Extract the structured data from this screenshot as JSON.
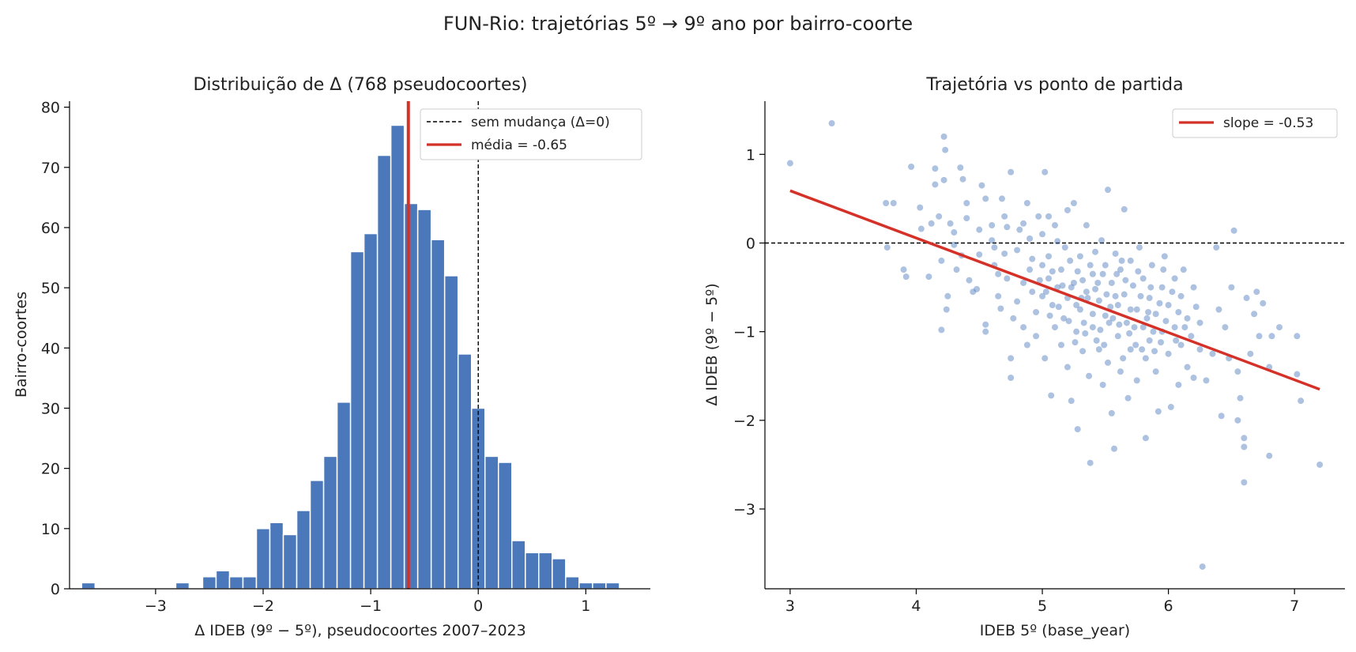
{
  "figure": {
    "title": "FUN-Rio: trajetórias 5º → 9º ano por bairro-coorte"
  },
  "chart_data": [
    {
      "type": "bar",
      "title": "Distribuição de Δ (768 pseudocoortes)",
      "xlabel": "Δ IDEB (9º − 5º), pseudocoortes 2007–2023",
      "ylabel": "Bairro-coortes",
      "xlim": [
        -3.8,
        1.6
      ],
      "ylim": [
        0,
        81
      ],
      "xticks": [
        -3,
        -2,
        -1,
        0,
        1
      ],
      "xtick_labels": [
        "−3",
        "−2",
        "−1",
        "0",
        "1"
      ],
      "yticks": [
        0,
        10,
        20,
        30,
        40,
        50,
        60,
        70,
        80
      ],
      "ytick_labels": [
        "0",
        "10",
        "20",
        "30",
        "40",
        "50",
        "60",
        "70",
        "80"
      ],
      "bin_width": 0.125,
      "bins": [
        {
          "x": -3.625,
          "count": 1
        },
        {
          "x": -2.75,
          "count": 1
        },
        {
          "x": -2.5,
          "count": 2
        },
        {
          "x": -2.375,
          "count": 3
        },
        {
          "x": -2.25,
          "count": 2
        },
        {
          "x": -2.125,
          "count": 2
        },
        {
          "x": -2.0,
          "count": 10
        },
        {
          "x": -1.875,
          "count": 11
        },
        {
          "x": -1.75,
          "count": 9
        },
        {
          "x": -1.625,
          "count": 13
        },
        {
          "x": -1.5,
          "count": 18
        },
        {
          "x": -1.375,
          "count": 22
        },
        {
          "x": -1.25,
          "count": 31
        },
        {
          "x": -1.125,
          "count": 56
        },
        {
          "x": -1.0,
          "count": 59
        },
        {
          "x": -0.875,
          "count": 72
        },
        {
          "x": -0.75,
          "count": 77
        },
        {
          "x": -0.625,
          "count": 64
        },
        {
          "x": -0.5,
          "count": 63
        },
        {
          "x": -0.375,
          "count": 58
        },
        {
          "x": -0.25,
          "count": 52
        },
        {
          "x": -0.125,
          "count": 39
        },
        {
          "x": 0.0,
          "count": 30
        },
        {
          "x": 0.125,
          "count": 22
        },
        {
          "x": 0.25,
          "count": 21
        },
        {
          "x": 0.375,
          "count": 8
        },
        {
          "x": 0.5,
          "count": 6
        },
        {
          "x": 0.625,
          "count": 6
        },
        {
          "x": 0.75,
          "count": 5
        },
        {
          "x": 0.875,
          "count": 2
        },
        {
          "x": 1.0,
          "count": 1
        },
        {
          "x": 1.125,
          "count": 1
        },
        {
          "x": 1.25,
          "count": 1
        }
      ],
      "bar_color": "#4a78bb",
      "reference_lines": [
        {
          "label": "sem mudança (Δ=0)",
          "x": 0,
          "style": "dashed",
          "color": "#000000"
        },
        {
          "label": "média = -0.65",
          "x": -0.65,
          "style": "solid",
          "color": "#d43228"
        }
      ],
      "legend_position": "top-right",
      "grid": false
    },
    {
      "type": "scatter",
      "title": "Trajetória vs ponto de partida",
      "xlabel": "IDEB 5º (base_year)",
      "ylabel": "Δ IDEB (9º − 5º)",
      "xlim": [
        2.8,
        7.4
      ],
      "ylim": [
        -3.9,
        1.6
      ],
      "xticks": [
        3,
        4,
        5,
        6,
        7
      ],
      "xtick_labels": [
        "3",
        "4",
        "5",
        "6",
        "7"
      ],
      "yticks": [
        -3,
        -2,
        -1,
        0,
        1
      ],
      "ytick_labels": [
        "−3",
        "−2",
        "−1",
        "0",
        "1"
      ],
      "point_color": "#4a78bb",
      "fit_line": {
        "label": "slope = -0.53",
        "x": [
          3.0,
          7.2
        ],
        "y": [
          0.59,
          -1.65
        ],
        "color": "#d43228"
      },
      "reference_lines": [
        {
          "y": 0,
          "style": "dashed",
          "color": "#000000"
        }
      ],
      "legend_position": "top-right",
      "grid": false,
      "points": [
        [
          3.0,
          0.9
        ],
        [
          3.33,
          1.35
        ],
        [
          3.76,
          0.45
        ],
        [
          3.82,
          0.45
        ],
        [
          3.77,
          -0.05
        ],
        [
          3.9,
          -0.3
        ],
        [
          3.92,
          -0.38
        ],
        [
          3.96,
          0.86
        ],
        [
          4.03,
          0.4
        ],
        [
          4.04,
          0.16
        ],
        [
          4.1,
          -0.38
        ],
        [
          4.12,
          0.22
        ],
        [
          4.15,
          0.66
        ],
        [
          4.15,
          0.84
        ],
        [
          4.18,
          0.3
        ],
        [
          4.2,
          -0.2
        ],
        [
          4.22,
          0.71
        ],
        [
          4.22,
          1.2
        ],
        [
          4.23,
          1.05
        ],
        [
          4.24,
          -0.75
        ],
        [
          4.25,
          -0.6
        ],
        [
          4.2,
          -0.98
        ],
        [
          4.27,
          0.22
        ],
        [
          4.3,
          0.12
        ],
        [
          4.3,
          -0.02
        ],
        [
          4.32,
          -0.3
        ],
        [
          4.35,
          0.85
        ],
        [
          4.36,
          -0.14
        ],
        [
          4.37,
          0.72
        ],
        [
          4.4,
          0.45
        ],
        [
          4.4,
          0.28
        ],
        [
          4.42,
          -0.42
        ],
        [
          4.45,
          -0.55
        ],
        [
          4.48,
          -0.52
        ],
        [
          4.5,
          0.15
        ],
        [
          4.5,
          -0.13
        ],
        [
          4.52,
          0.65
        ],
        [
          4.55,
          0.5
        ],
        [
          4.55,
          -0.92
        ],
        [
          4.55,
          -1.0
        ],
        [
          4.6,
          0.2
        ],
        [
          4.6,
          0.03
        ],
        [
          4.62,
          -0.25
        ],
        [
          4.65,
          -0.6
        ],
        [
          4.65,
          -0.35
        ],
        [
          4.67,
          -0.74
        ],
        [
          4.68,
          0.5
        ],
        [
          4.7,
          -0.12
        ],
        [
          4.72,
          -0.4
        ],
        [
          4.72,
          0.18
        ],
        [
          4.75,
          0.8
        ],
        [
          4.75,
          -1.3
        ],
        [
          4.75,
          -1.52
        ],
        [
          4.77,
          -0.85
        ],
        [
          4.8,
          -0.08
        ],
        [
          4.8,
          -0.66
        ],
        [
          4.82,
          0.15
        ],
        [
          4.85,
          -0.45
        ],
        [
          4.85,
          -0.95
        ],
        [
          4.88,
          0.45
        ],
        [
          4.88,
          -1.15
        ],
        [
          4.9,
          -0.3
        ],
        [
          4.9,
          0.05
        ],
        [
          4.92,
          -0.55
        ],
        [
          4.95,
          -0.78
        ],
        [
          4.95,
          -1.05
        ],
        [
          4.97,
          0.3
        ],
        [
          5.0,
          -0.25
        ],
        [
          5.0,
          -0.6
        ],
        [
          5.0,
          0.1
        ],
        [
          5.02,
          -1.3
        ],
        [
          5.02,
          0.8
        ],
        [
          5.05,
          -0.15
        ],
        [
          5.05,
          -0.4
        ],
        [
          5.07,
          -1.72
        ],
        [
          5.08,
          -0.7
        ],
        [
          5.1,
          0.2
        ],
        [
          5.1,
          -0.95
        ],
        [
          5.12,
          -0.5
        ],
        [
          5.12,
          0.02
        ],
        [
          5.15,
          -0.3
        ],
        [
          5.15,
          -1.15
        ],
        [
          5.17,
          -0.85
        ],
        [
          5.2,
          0.37
        ],
        [
          5.2,
          -0.62
        ],
        [
          5.2,
          -1.4
        ],
        [
          5.22,
          -0.2
        ],
        [
          5.23,
          -1.78
        ],
        [
          5.25,
          0.45
        ],
        [
          5.25,
          -0.45
        ],
        [
          5.27,
          -1.0
        ],
        [
          5.28,
          -2.1
        ],
        [
          5.3,
          -0.15
        ],
        [
          5.3,
          -0.75
        ],
        [
          5.32,
          -1.22
        ],
        [
          5.35,
          0.2
        ],
        [
          5.35,
          -0.55
        ],
        [
          5.37,
          -1.5
        ],
        [
          5.38,
          -2.48
        ],
        [
          5.4,
          -0.35
        ],
        [
          5.4,
          -0.95
        ],
        [
          5.42,
          -0.1
        ],
        [
          5.45,
          -0.65
        ],
        [
          5.45,
          -1.2
        ],
        [
          5.47,
          0.03
        ],
        [
          5.48,
          -1.6
        ],
        [
          5.5,
          -0.25
        ],
        [
          5.5,
          -0.82
        ],
        [
          5.52,
          -1.35
        ],
        [
          5.52,
          0.6
        ],
        [
          5.55,
          -0.45
        ],
        [
          5.55,
          -1.92
        ],
        [
          5.57,
          -2.32
        ],
        [
          5.58,
          -0.12
        ],
        [
          5.6,
          -0.7
        ],
        [
          5.6,
          -1.05
        ],
        [
          5.62,
          -0.3
        ],
        [
          5.62,
          -1.45
        ],
        [
          5.65,
          0.38
        ],
        [
          5.65,
          -0.58
        ],
        [
          5.67,
          -0.9
        ],
        [
          5.68,
          -1.75
        ],
        [
          5.7,
          -0.2
        ],
        [
          5.7,
          -1.2
        ],
        [
          5.72,
          -0.48
        ],
        [
          5.75,
          -0.75
        ],
        [
          5.75,
          -1.55
        ],
        [
          5.77,
          -0.05
        ],
        [
          5.8,
          -0.95
        ],
        [
          5.8,
          -0.4
        ],
        [
          5.82,
          -1.3
        ],
        [
          5.82,
          -2.2
        ],
        [
          5.85,
          -0.62
        ],
        [
          5.85,
          -1.1
        ],
        [
          5.87,
          -0.25
        ],
        [
          5.9,
          -0.8
        ],
        [
          5.9,
          -1.45
        ],
        [
          5.92,
          -1.9
        ],
        [
          5.95,
          -0.5
        ],
        [
          5.95,
          -1.0
        ],
        [
          5.97,
          -0.15
        ],
        [
          6.0,
          -0.7
        ],
        [
          6.0,
          -1.25
        ],
        [
          6.02,
          -1.85
        ],
        [
          6.05,
          -0.4
        ],
        [
          6.05,
          -0.95
        ],
        [
          6.08,
          -1.6
        ],
        [
          6.1,
          -0.6
        ],
        [
          6.1,
          -1.15
        ],
        [
          6.12,
          -0.3
        ],
        [
          6.15,
          -0.85
        ],
        [
          6.15,
          -1.4
        ],
        [
          6.18,
          -1.05
        ],
        [
          6.2,
          -0.5
        ],
        [
          6.2,
          -1.52
        ],
        [
          6.22,
          -0.72
        ],
        [
          6.25,
          -1.2
        ],
        [
          6.25,
          -0.9
        ],
        [
          6.27,
          -3.65
        ],
        [
          6.3,
          -1.55
        ],
        [
          6.35,
          -1.25
        ],
        [
          6.38,
          -0.05
        ],
        [
          6.4,
          -0.75
        ],
        [
          6.42,
          -1.95
        ],
        [
          6.45,
          -0.95
        ],
        [
          6.48,
          -1.3
        ],
        [
          6.5,
          -0.5
        ],
        [
          6.52,
          0.14
        ],
        [
          6.55,
          -1.45
        ],
        [
          6.55,
          -2.0
        ],
        [
          6.57,
          -1.75
        ],
        [
          6.6,
          -2.2
        ],
        [
          6.6,
          -2.3
        ],
        [
          6.6,
          -2.7
        ],
        [
          6.62,
          -0.62
        ],
        [
          6.65,
          -1.25
        ],
        [
          6.68,
          -0.8
        ],
        [
          6.7,
          -0.55
        ],
        [
          6.72,
          -1.05
        ],
        [
          6.75,
          -0.68
        ],
        [
          6.8,
          -2.4
        ],
        [
          6.8,
          -1.4
        ],
        [
          6.82,
          -1.05
        ],
        [
          6.88,
          -0.95
        ],
        [
          7.02,
          -1.05
        ],
        [
          7.02,
          -1.48
        ],
        [
          7.05,
          -1.78
        ],
        [
          7.2,
          -2.5
        ],
        [
          4.62,
          -0.05
        ],
        [
          4.7,
          0.3
        ],
        [
          4.85,
          0.22
        ],
        [
          4.92,
          -0.18
        ],
        [
          5.05,
          0.3
        ],
        [
          5.08,
          -0.32
        ],
        [
          5.18,
          -0.05
        ],
        [
          5.28,
          -0.32
        ],
        [
          5.33,
          -0.9
        ],
        [
          5.38,
          -0.25
        ],
        [
          5.42,
          -0.52
        ],
        [
          5.48,
          -0.35
        ],
        [
          5.53,
          -0.9
        ],
        [
          5.58,
          -0.6
        ],
        [
          5.63,
          -0.2
        ],
        [
          5.66,
          -0.42
        ],
        [
          5.7,
          -0.75
        ],
        [
          5.73,
          -0.95
        ],
        [
          5.76,
          -0.32
        ],
        [
          5.78,
          -0.6
        ],
        [
          5.83,
          -0.85
        ],
        [
          5.86,
          -0.5
        ],
        [
          5.88,
          -1.0
        ],
        [
          5.93,
          -0.68
        ],
        [
          5.96,
          -0.3
        ],
        [
          5.98,
          -0.88
        ],
        [
          6.03,
          -0.55
        ],
        [
          6.06,
          -1.1
        ],
        [
          6.08,
          -0.78
        ],
        [
          6.13,
          -0.95
        ],
        [
          5.23,
          -0.5
        ],
        [
          5.27,
          -0.7
        ],
        [
          5.32,
          -0.42
        ],
        [
          5.36,
          -0.62
        ],
        [
          5.4,
          -0.8
        ],
        [
          5.44,
          -0.45
        ],
        [
          5.46,
          -0.98
        ],
        [
          5.51,
          -0.58
        ],
        [
          5.56,
          -0.85
        ],
        [
          5.59,
          -0.35
        ],
        [
          4.98,
          -0.42
        ],
        [
          5.03,
          -0.55
        ],
        [
          5.06,
          -0.82
        ],
        [
          5.13,
          -0.72
        ],
        [
          5.16,
          -0.48
        ],
        [
          5.21,
          -0.88
        ],
        [
          5.26,
          -1.12
        ],
        [
          5.31,
          -0.62
        ],
        [
          5.34,
          -1.02
        ],
        [
          5.43,
          -1.1
        ],
        [
          5.49,
          -1.15
        ],
        [
          5.54,
          -0.72
        ],
        [
          5.61,
          -0.92
        ],
        [
          5.64,
          -1.3
        ],
        [
          5.69,
          -1.02
        ],
        [
          5.74,
          -1.15
        ],
        [
          5.79,
          -1.2
        ],
        [
          5.84,
          -0.78
        ],
        [
          5.89,
          -1.22
        ],
        [
          5.94,
          -1.12
        ]
      ]
    }
  ]
}
